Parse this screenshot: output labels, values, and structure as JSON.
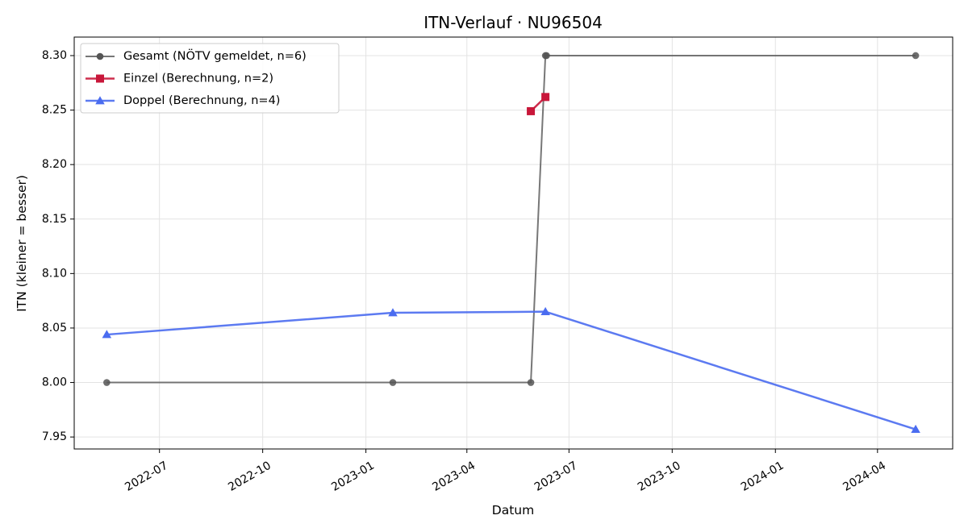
{
  "chart_data": {
    "type": "line",
    "title": "ITN-Verlauf · NU96504",
    "xlabel": "Datum",
    "ylabel": "ITN  (kleiner = besser)",
    "xlim": [
      "2022-04-16",
      "2024-06-07"
    ],
    "ylim": [
      7.939,
      8.317
    ],
    "x_ticks": [
      "2022-07-01",
      "2022-10-01",
      "2023-01-01",
      "2023-04-01",
      "2023-07-01",
      "2023-10-01",
      "2024-01-01",
      "2024-04-01"
    ],
    "x_tick_labels": [
      "2022-07",
      "2022-10",
      "2023-01",
      "2023-04",
      "2023-07",
      "2023-10",
      "2024-01",
      "2024-04"
    ],
    "y_ticks": [
      7.95,
      8.0,
      8.05,
      8.1,
      8.15,
      8.2,
      8.25,
      8.3
    ],
    "y_tick_labels": [
      "7.95",
      "8.00",
      "8.05",
      "8.10",
      "8.15",
      "8.20",
      "8.25",
      "8.30"
    ],
    "grid": true,
    "legend_position": "top-left",
    "series": [
      {
        "name": "Gesamt (NÖTV gemeldet, n=6)",
        "color": "#555555",
        "marker": "circle",
        "x": [
          "2022-05-15",
          "2023-01-25",
          "2023-05-28",
          "2023-06-10",
          "2023-06-11",
          "2024-05-05"
        ],
        "y": [
          8.0,
          8.0,
          8.0,
          8.3,
          8.3,
          8.3
        ]
      },
      {
        "name": "Einzel (Berechnung, n=2)",
        "color": "#c8173a",
        "marker": "square",
        "x": [
          "2023-05-28",
          "2023-06-10"
        ],
        "y": [
          8.249,
          8.262
        ]
      },
      {
        "name": "Doppel (Berechnung, n=4)",
        "color": "#4a6cf0",
        "marker": "triangle",
        "x": [
          "2022-05-15",
          "2023-01-25",
          "2023-06-10",
          "2024-05-05"
        ],
        "y": [
          8.044,
          8.064,
          8.065,
          7.957
        ]
      }
    ]
  }
}
